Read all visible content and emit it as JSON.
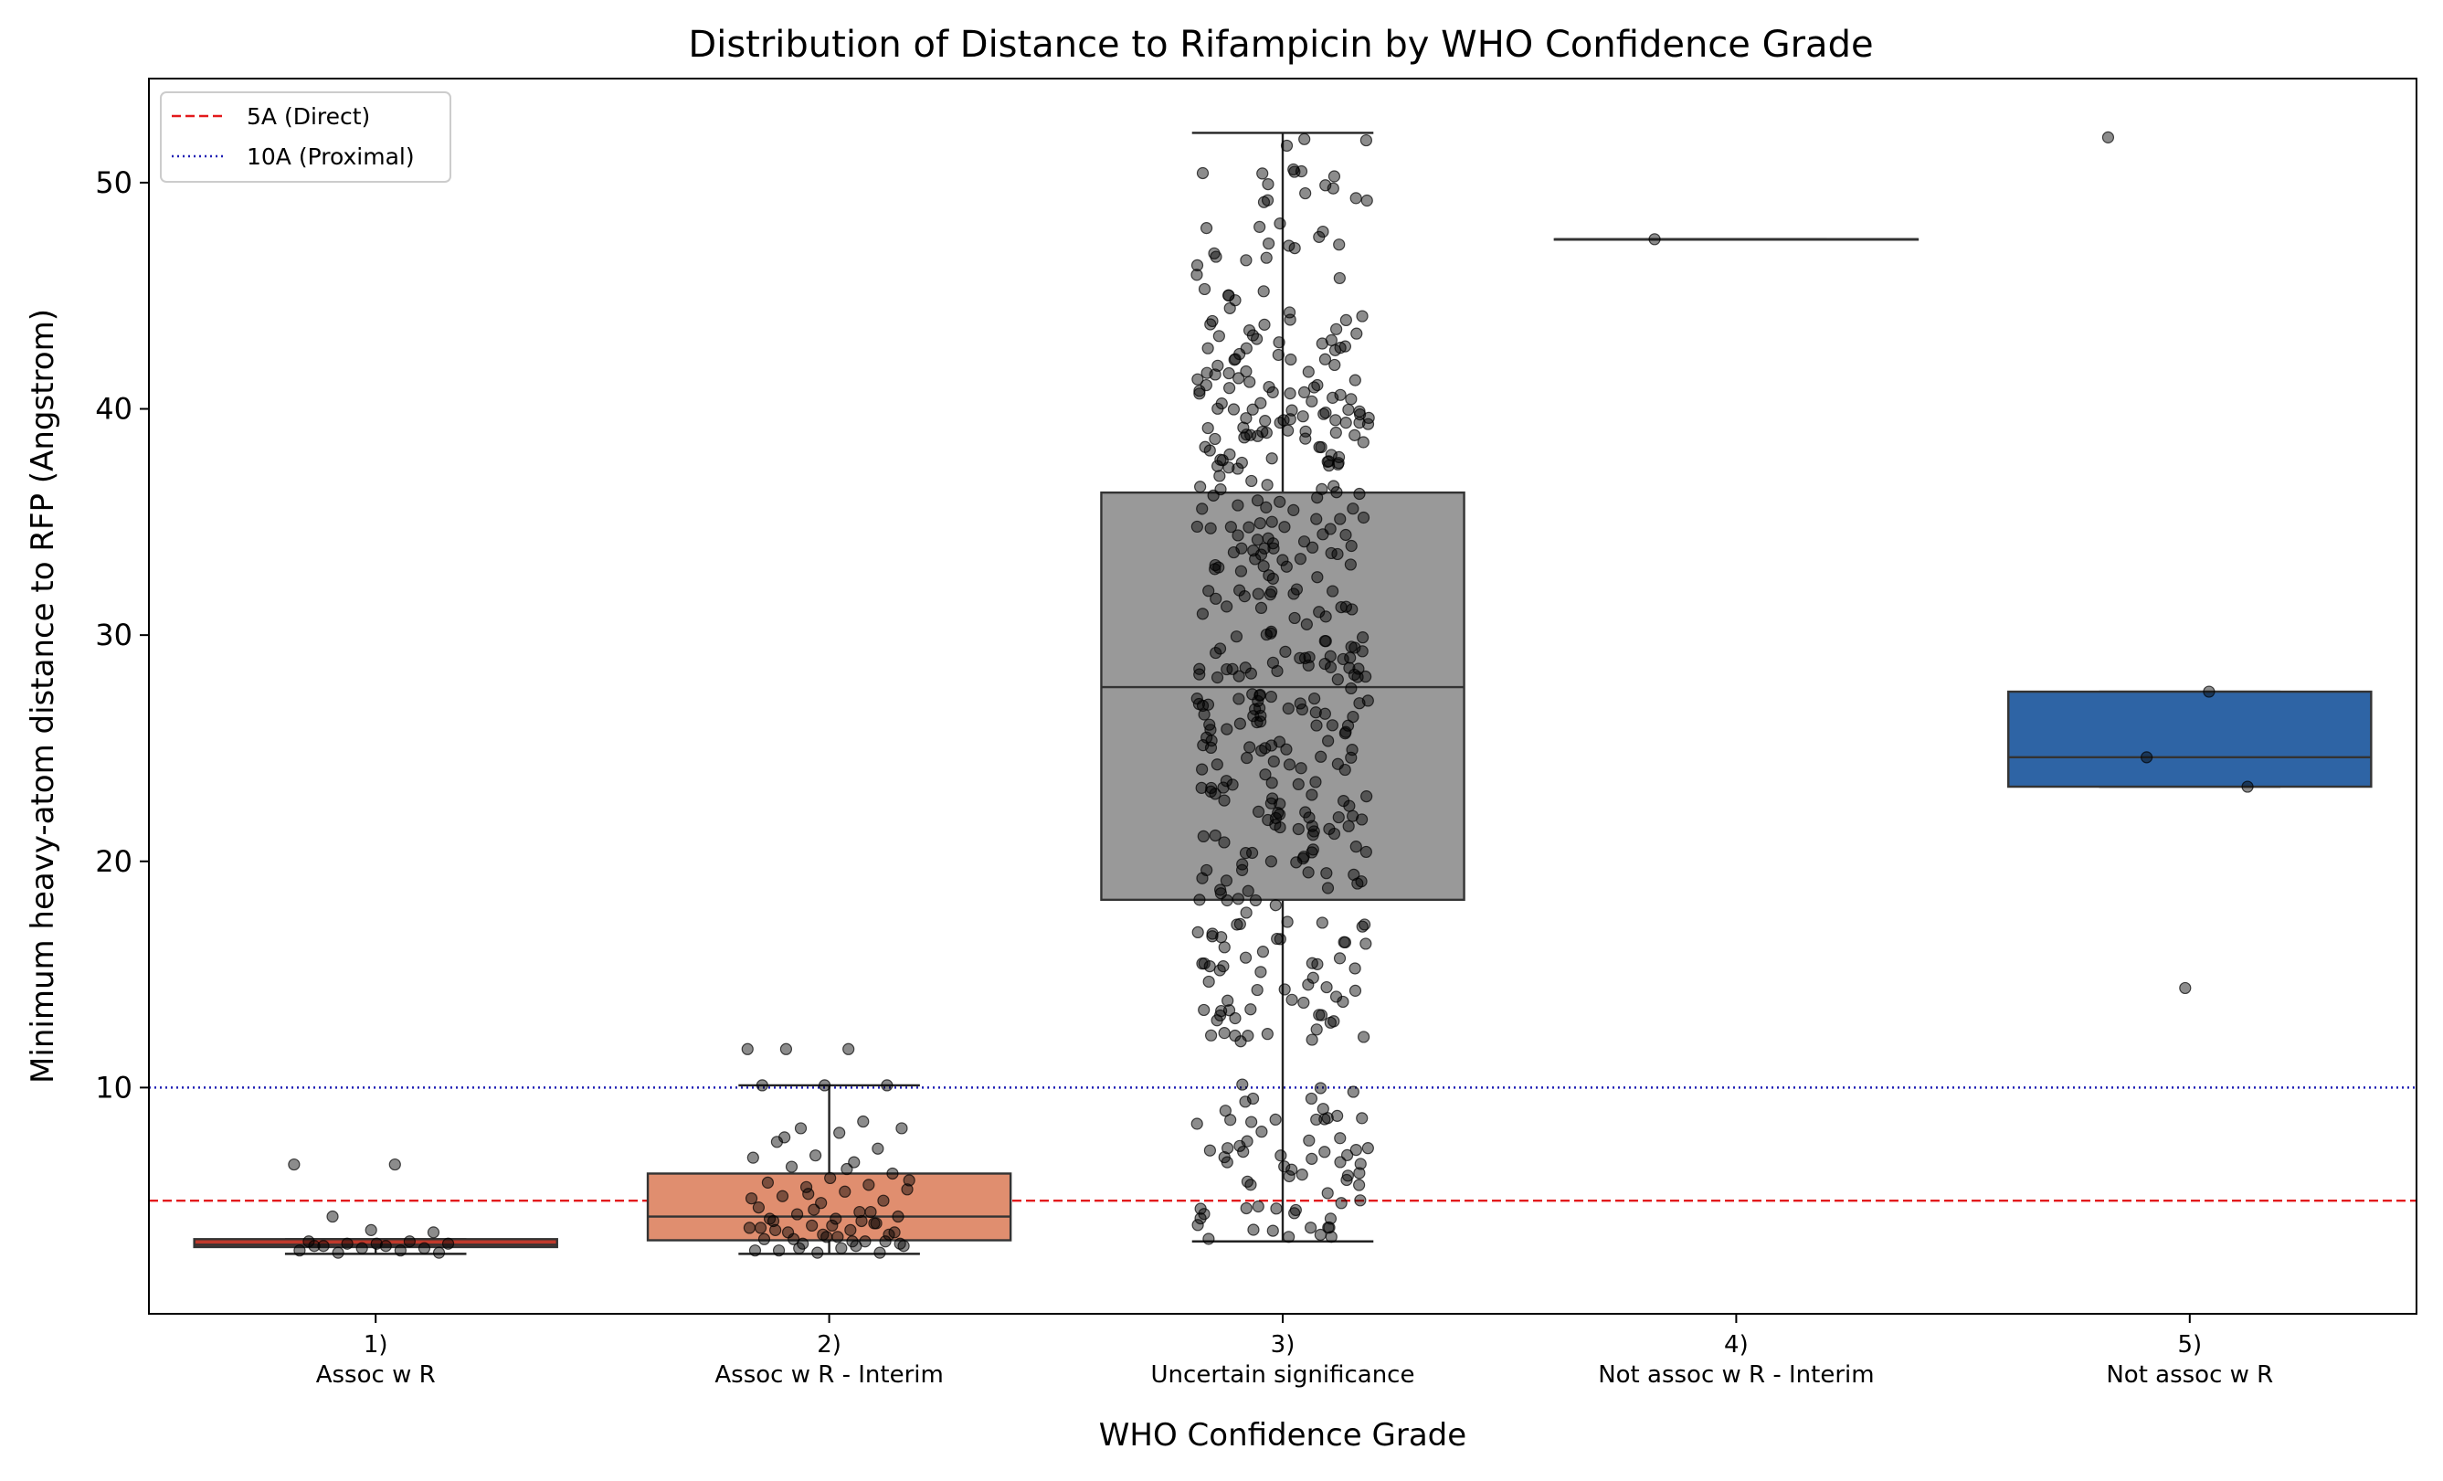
{
  "chart_data": {
    "type": "box",
    "title": "Distribution of Distance to Rifampicin by WHO Confidence Grade",
    "xlabel": "WHO Confidence Grade",
    "ylabel": "Minimum heavy-atom distance to RFP (Angstrom)",
    "ylim": [
      0.0,
      54.6
    ],
    "yticks": [
      10,
      20,
      30,
      40,
      50
    ],
    "grid": false,
    "legend_position": "top-left",
    "reference_lines": [
      {
        "name": "5A (Direct)",
        "y": 5,
        "color": "#e31a1c",
        "style": "dashed"
      },
      {
        "name": "10A (Proximal)",
        "y": 10,
        "color": "#1f1fb4",
        "style": "dotted"
      }
    ],
    "categories": [
      {
        "tick": "1)",
        "label": "Assoc w R",
        "color": "#c0392b",
        "box": {
          "q1": 2.95,
          "median": 3.05,
          "q3": 3.3,
          "whisker_low": 2.65,
          "whisker_high": 3.3
        }
      },
      {
        "tick": "2)",
        "label": "Assoc w R - Interim",
        "color": "#e08e6f",
        "box": {
          "q1": 3.25,
          "median": 4.3,
          "q3": 6.2,
          "whisker_low": 2.65,
          "whisker_high": 10.1
        }
      },
      {
        "tick": "3)",
        "label": "Uncertain significance",
        "color": "#999999",
        "box": {
          "q1": 18.3,
          "median": 27.7,
          "q3": 36.3,
          "whisker_low": 3.2,
          "whisker_high": 52.2
        }
      },
      {
        "tick": "4)",
        "label": "Not assoc w R - Interim",
        "color": "#c0c0c0",
        "box": {
          "q1": 47.5,
          "median": 47.5,
          "q3": 47.5,
          "whisker_low": 47.5,
          "whisker_high": 47.5
        }
      },
      {
        "tick": "5)",
        "label": "Not assoc w R",
        "color": "#2e64a5",
        "box": {
          "q1": 23.3,
          "median": 24.6,
          "q3": 27.5,
          "whisker_low": 23.3,
          "whisker_high": 27.5
        }
      }
    ],
    "points": [
      {
        "category": 1,
        "y": [
          6.6,
          6.6,
          4.3,
          3.6,
          3.7,
          3.2,
          3.2,
          3.1,
          3.1,
          3.0,
          3.0,
          2.9,
          2.9,
          2.8,
          2.8,
          2.7,
          2.7,
          3.1,
          3.0
        ]
      },
      {
        "category": 2,
        "y": [
          11.7,
          11.7,
          11.7,
          10.1,
          10.1,
          10.1,
          8.5,
          8.2,
          8.2,
          8.0,
          7.6,
          7.3,
          7.0,
          6.9,
          6.7,
          6.5,
          6.2,
          6.0,
          5.8,
          5.7,
          5.6,
          5.5,
          5.4,
          5.2,
          5.0,
          4.9,
          4.7,
          4.5,
          4.4,
          4.3,
          4.2,
          4.1,
          4.0,
          3.9,
          3.8,
          3.7,
          3.6,
          3.5,
          3.4,
          3.3,
          3.2,
          3.1,
          3.0,
          2.9,
          2.8,
          2.7,
          2.7,
          2.8,
          3.0,
          3.3,
          3.6,
          3.9,
          4.2,
          4.5,
          5.3,
          5.9,
          6.4,
          7.8,
          3.2,
          3.5,
          3.8,
          4.1,
          2.9,
          3.1,
          3.4,
          3.7,
          4.0,
          4.6,
          5.1,
          3.2
        ]
      },
      {
        "category": 3,
        "y_range": [
          3.2,
          52.2
        ],
        "count": 520
      },
      {
        "category": 4,
        "y": [
          47.5
        ]
      },
      {
        "category": 5,
        "y": [
          52.0,
          27.5,
          24.6,
          23.3,
          14.4
        ]
      }
    ]
  }
}
